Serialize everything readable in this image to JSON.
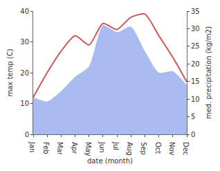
{
  "chart_data": {
    "type": "line",
    "categories": [
      "Jan",
      "Feb",
      "Mar",
      "Apr",
      "May",
      "Jun",
      "Jul",
      "Aug",
      "Sep",
      "Oct",
      "Nov",
      "Dec"
    ],
    "x_label": "date (month)",
    "y_label": "max temp (C)",
    "y2_label": "med. precipitation (kg/m2)",
    "ylim": [
      0,
      40
    ],
    "yticks": [
      0,
      10,
      20,
      30,
      40
    ],
    "y2lim": [
      0,
      35
    ],
    "y2ticks": [
      0,
      5,
      10,
      15,
      20,
      25,
      30,
      35
    ],
    "grid": false,
    "series": [
      {
        "name": "med. precipitation",
        "type": "area",
        "axis": "y2",
        "color": "#aabbf0",
        "values": [
          10.5,
          9.3,
          12.3,
          16.3,
          19.3,
          31,
          29,
          30.6,
          23.6,
          17.5,
          17.9,
          14
        ]
      },
      {
        "name": "max temp",
        "type": "line",
        "color": "#cc5555",
        "values": [
          12,
          20,
          27,
          32,
          29,
          36,
          34,
          38,
          39,
          32,
          25,
          17
        ]
      }
    ]
  }
}
